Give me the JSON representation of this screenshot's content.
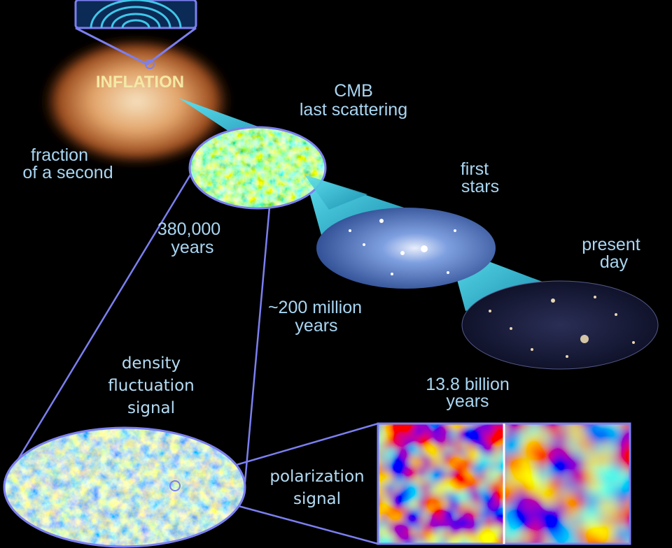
{
  "stages": {
    "inflation": {
      "title": "INFLATION",
      "time": [
        "fraction",
        "of a second"
      ]
    },
    "cmb": {
      "title": [
        "CMB",
        "last scattering"
      ],
      "time": [
        "380,000",
        "years"
      ]
    },
    "first_stars": {
      "title": [
        "first",
        "stars"
      ],
      "time": [
        "~200 million",
        "years"
      ]
    },
    "present_day": {
      "title": [
        "present",
        "day"
      ],
      "time": [
        "13.8 billion",
        "years"
      ]
    }
  },
  "signals": {
    "density": [
      "density",
      "fluctuation",
      "signal"
    ],
    "polarization": [
      "polarization",
      "signal"
    ]
  },
  "colors": {
    "background": "#000000",
    "label": "#a9d6f2",
    "inflation_label": "#f4e8a6",
    "outline": "#7b7ff0",
    "cone": "#3fc6d8"
  }
}
